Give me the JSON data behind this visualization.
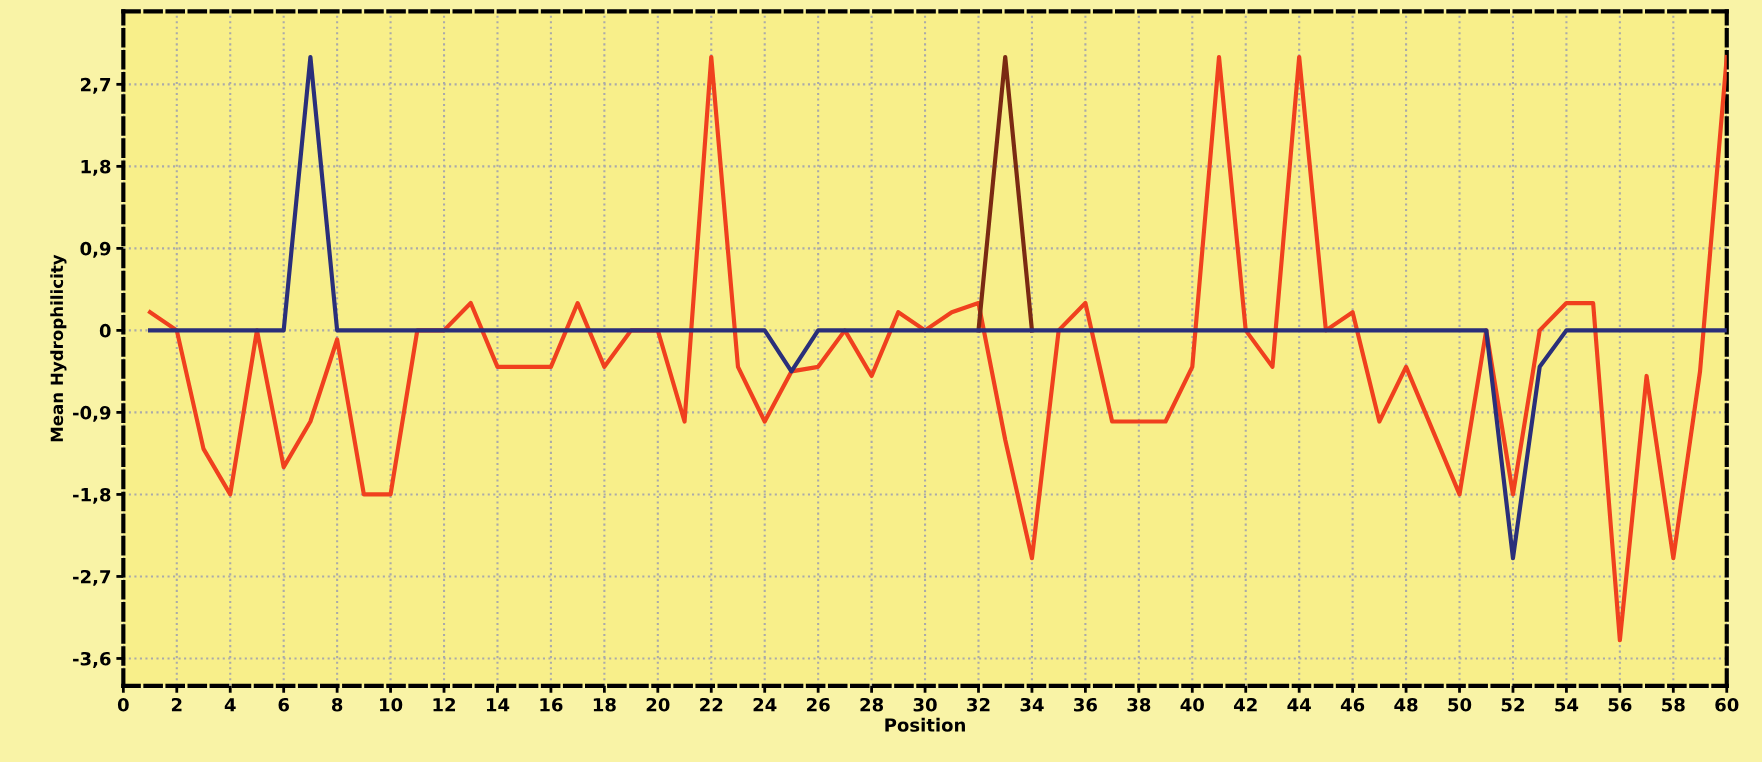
{
  "chart_data": {
    "type": "line",
    "xlabel": "Position",
    "ylabel": "Mean Hydrophilicity",
    "x": [
      1,
      2,
      3,
      4,
      5,
      6,
      7,
      8,
      9,
      10,
      11,
      12,
      13,
      14,
      15,
      16,
      17,
      18,
      19,
      20,
      21,
      22,
      23,
      24,
      25,
      26,
      27,
      28,
      29,
      30,
      31,
      32,
      33,
      34,
      35,
      36,
      37,
      38,
      39,
      40,
      41,
      42,
      43,
      44,
      45,
      46,
      47,
      48,
      49,
      50,
      51,
      52,
      53,
      54,
      55,
      56,
      57,
      58,
      59,
      60
    ],
    "series": [
      {
        "color": "#f0401e",
        "values": [
          0.2,
          0,
          -1.3,
          -1.8,
          0,
          -1.5,
          -1.0,
          -0.1,
          -1.8,
          -1.8,
          0,
          0,
          0.3,
          -0.4,
          -0.4,
          -0.4,
          0.3,
          -0.4,
          0,
          0,
          -1.0,
          3.0,
          -0.4,
          -1.0,
          -0.45,
          -0.4,
          0,
          -0.5,
          0.2,
          0,
          0.2,
          0.3,
          -1.2,
          -2.5,
          0,
          0.3,
          -1.0,
          -1.0,
          -1.0,
          -0.4,
          3.0,
          0,
          -0.4,
          3.0,
          0,
          0.2,
          -1.0,
          -0.4,
          -1.1,
          -1.8,
          0,
          -1.8,
          0,
          0.3,
          0.3,
          -3.4,
          -0.5,
          -2.5,
          -0.45,
          3.0
        ]
      },
      {
        "color": "#7a2a12",
        "values": [
          null,
          null,
          null,
          null,
          null,
          null,
          null,
          null,
          null,
          null,
          null,
          null,
          null,
          null,
          null,
          null,
          null,
          null,
          null,
          null,
          null,
          null,
          null,
          null,
          null,
          null,
          null,
          null,
          null,
          null,
          null,
          0,
          3.0,
          0,
          null,
          null,
          null,
          null,
          null,
          null,
          null,
          null,
          null,
          null,
          null,
          null,
          null,
          null,
          null,
          null,
          null,
          null,
          null,
          null,
          null,
          null,
          null,
          null,
          null,
          null
        ]
      },
      {
        "color": "#2a2f7a",
        "values": [
          0,
          0,
          0,
          0,
          0,
          0,
          3.0,
          0,
          0,
          0,
          0,
          0,
          0,
          0,
          0,
          0,
          0,
          0,
          0,
          0,
          0,
          0,
          0,
          0,
          -0.45,
          0,
          0,
          0,
          0,
          0,
          0,
          0,
          0,
          0,
          0,
          0,
          0,
          0,
          0,
          0,
          0,
          0,
          0,
          0,
          0,
          0,
          0,
          0,
          0,
          0,
          0,
          -2.5,
          -0.4,
          0,
          0,
          0,
          0,
          0,
          0,
          0
        ]
      }
    ],
    "xlim": [
      0,
      60
    ],
    "xticks": [
      0,
      2,
      4,
      6,
      8,
      10,
      12,
      14,
      16,
      18,
      20,
      22,
      24,
      26,
      28,
      30,
      32,
      34,
      36,
      38,
      40,
      42,
      44,
      46,
      48,
      50,
      52,
      54,
      56,
      58,
      60
    ],
    "ylim": [
      -3.9,
      3.5
    ],
    "yticks": [
      {
        "value": 2.7,
        "label": "2,7"
      },
      {
        "value": 1.8,
        "label": "1,8"
      },
      {
        "value": 0.9,
        "label": "0,9"
      },
      0,
      {
        "value": -0.9,
        "label": "-0,9"
      },
      {
        "value": -1.8,
        "label": "-1,8"
      },
      {
        "value": -2.7,
        "label": "-2,7"
      },
      {
        "value": -3.6,
        "label": "-3,6"
      }
    ],
    "grid": true,
    "marker": "none",
    "line_style": "solid"
  }
}
